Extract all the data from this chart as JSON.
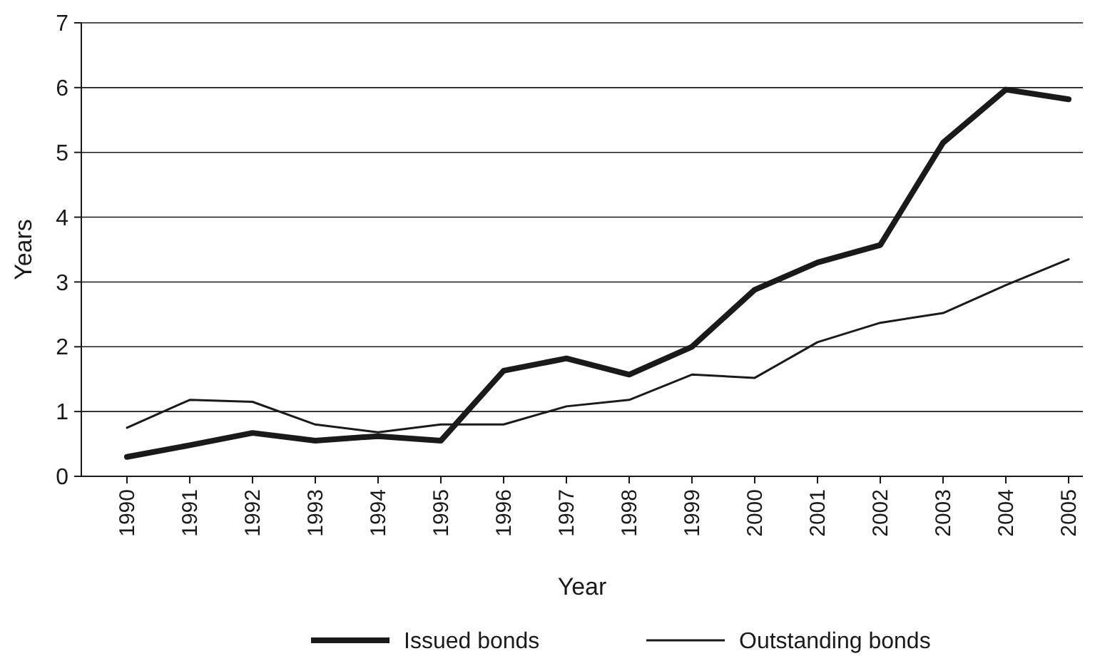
{
  "chart_data": {
    "type": "line",
    "xlabel": "Year",
    "ylabel": "Years",
    "categories": [
      "1990",
      "1991",
      "1992",
      "1993",
      "1994",
      "1995",
      "1996",
      "1997",
      "1998",
      "1999",
      "2000",
      "2001",
      "2002",
      "2003",
      "2004",
      "2005"
    ],
    "series": [
      {
        "name": "Issued bonds",
        "color": "#1a1a1a",
        "values": [
          0.3,
          0.48,
          0.67,
          0.55,
          0.62,
          0.55,
          1.63,
          1.82,
          1.57,
          2.0,
          2.88,
          3.3,
          3.57,
          5.15,
          5.97,
          5.82
        ]
      },
      {
        "name": "Outstanding bonds",
        "color": "#1a1a1a",
        "values": [
          0.75,
          1.18,
          1.15,
          0.8,
          0.68,
          0.8,
          0.8,
          1.08,
          1.18,
          1.57,
          1.52,
          2.07,
          2.37,
          2.52,
          2.95,
          3.35
        ]
      }
    ],
    "ylim": [
      0,
      7
    ],
    "yticks": [
      0,
      1,
      2,
      3,
      4,
      5,
      6,
      7
    ],
    "grid": "y",
    "legend": "bottom",
    "marker": "none",
    "line_style": "solid"
  }
}
